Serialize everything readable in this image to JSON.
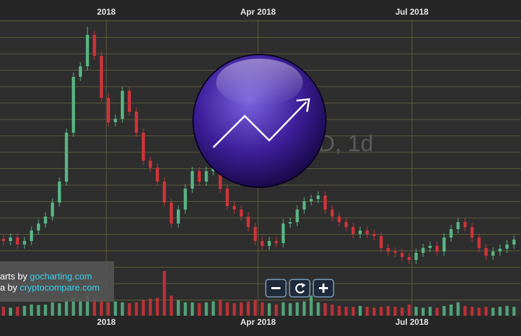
{
  "chart_data": {
    "type": "candlestick",
    "xlim": [
      -0.5,
      74
    ],
    "xticks": [
      {
        "value": 14.7,
        "label": "2018"
      },
      {
        "value": 36.4,
        "label": "Apr 2018"
      },
      {
        "value": 58.4,
        "label": "Jul 2018"
      }
    ],
    "ylim": [
      0,
      350
    ],
    "vlim": [
      0,
      100
    ],
    "grid": true,
    "up_color": "#58b685",
    "down_color": "#d0333a",
    "open": [
      38,
      35,
      40,
      30,
      35,
      50,
      60,
      70,
      90,
      120,
      190,
      270,
      285,
      330,
      300,
      240,
      205,
      210,
      250,
      220,
      190,
      150,
      140,
      120,
      90,
      60,
      80,
      110,
      135,
      120,
      135,
      155,
      110,
      85,
      80,
      70,
      55,
      35,
      28,
      35,
      32,
      60,
      62,
      80,
      92,
      95,
      100,
      80,
      70,
      62,
      55,
      45,
      50,
      45,
      42,
      25,
      20,
      18,
      12,
      8,
      18,
      25,
      28,
      20,
      40,
      52,
      62,
      55,
      40,
      25,
      14,
      20,
      24,
      30
    ],
    "high": [
      44,
      46,
      46,
      41,
      56,
      66,
      76,
      96,
      126,
      196,
      276,
      291,
      342,
      336,
      306,
      246,
      216,
      256,
      256,
      226,
      196,
      156,
      146,
      126,
      96,
      86,
      116,
      141,
      141,
      141,
      161,
      161,
      116,
      91,
      86,
      76,
      61,
      41,
      41,
      41,
      66,
      68,
      86,
      98,
      101,
      106,
      106,
      86,
      76,
      68,
      61,
      56,
      56,
      51,
      48,
      31,
      26,
      24,
      18,
      24,
      31,
      34,
      34,
      46,
      58,
      68,
      68,
      61,
      46,
      31,
      26,
      30,
      36,
      43
    ],
    "low": [
      29,
      29,
      24,
      24,
      29,
      44,
      54,
      64,
      84,
      114,
      184,
      264,
      279,
      294,
      234,
      199,
      199,
      204,
      214,
      184,
      144,
      134,
      114,
      84,
      54,
      54,
      74,
      104,
      114,
      114,
      129,
      104,
      79,
      74,
      64,
      49,
      29,
      22,
      22,
      26,
      26,
      54,
      56,
      74,
      86,
      89,
      74,
      64,
      56,
      49,
      39,
      39,
      39,
      36,
      19,
      14,
      12,
      6,
      2,
      2,
      12,
      19,
      14,
      14,
      34,
      46,
      49,
      34,
      19,
      8,
      8,
      14,
      18,
      24
    ],
    "close": [
      35,
      40,
      30,
      35,
      50,
      60,
      70,
      90,
      120,
      190,
      270,
      285,
      330,
      300,
      240,
      205,
      210,
      250,
      220,
      190,
      150,
      140,
      120,
      90,
      60,
      80,
      110,
      135,
      120,
      135,
      155,
      110,
      85,
      80,
      70,
      55,
      35,
      28,
      35,
      32,
      60,
      62,
      80,
      92,
      95,
      100,
      80,
      70,
      62,
      55,
      45,
      50,
      45,
      42,
      25,
      20,
      18,
      12,
      8,
      18,
      25,
      28,
      20,
      40,
      52,
      62,
      55,
      40,
      25,
      14,
      20,
      24,
      30,
      37
    ],
    "volume": [
      20,
      18,
      20,
      22,
      25,
      24,
      25,
      30,
      28,
      35,
      40,
      38,
      45,
      40,
      35,
      30,
      32,
      30,
      28,
      30,
      35,
      38,
      40,
      100,
      45,
      35,
      30,
      30,
      28,
      30,
      32,
      35,
      30,
      28,
      30,
      32,
      35,
      30,
      28,
      25,
      30,
      28,
      30,
      32,
      45,
      30,
      28,
      25,
      22,
      20,
      20,
      22,
      20,
      18,
      20,
      22,
      20,
      18,
      25,
      20,
      18,
      20,
      18,
      22,
      25,
      30,
      22,
      20,
      18,
      20,
      18,
      20,
      22,
      20
    ],
    "watermark": "D, 1d",
    "credits": [
      {
        "prefix": "arts by",
        "link": "gocharting.com"
      },
      {
        "prefix": "a by",
        "link": "cryptocompare.com"
      }
    ]
  }
}
